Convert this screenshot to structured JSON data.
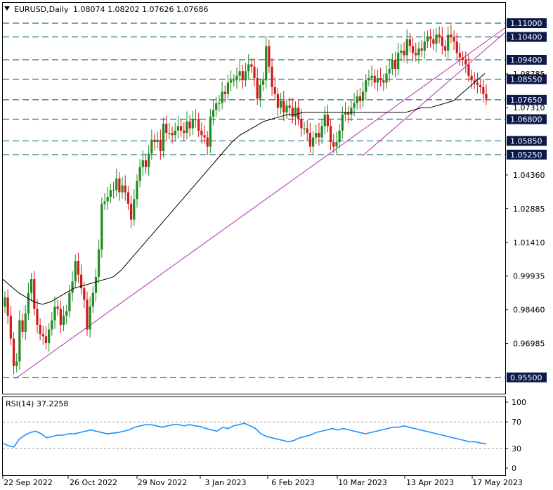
{
  "header": {
    "symbol": "EURUSD,Daily",
    "ohlc": "1.08074 1.08202 1.07626 1.07686",
    "menu_icon": "triangle-down-icon"
  },
  "rsi_panel": {
    "label": "RSI(14) 37.2258",
    "levels": [
      100,
      70,
      30,
      0
    ],
    "dashed_levels": [
      70,
      30
    ],
    "range": [
      0,
      100
    ]
  },
  "colors": {
    "bull": "#1f8a1f",
    "bear": "#d11a1a",
    "level_line": "#1f6f7f",
    "trendline": "#b030b0",
    "ma_line": "#000000",
    "rsi_line": "#1e90ff",
    "price_box": "#0b1a4a"
  },
  "chart_data": {
    "type": "candlestick",
    "price_range": [
      0.9485,
      1.114
    ],
    "y_ticks": [
      "1.04360",
      "1.02885",
      "1.01410",
      "0.99935",
      "0.98460",
      "0.96985",
      "1.08785",
      "1.07310"
    ],
    "x_ticks": [
      "22 Sep 2022",
      "26 Oct 2022",
      "29 Nov 2022",
      "3 Jan 2023",
      "6 Feb 2023",
      "10 Mar 2023",
      "13 Apr 2023",
      "17 May 2023"
    ],
    "horizontal_levels": [
      "1.11000",
      "1.10400",
      "1.09400",
      "1.08550",
      "1.07650",
      "1.06800",
      "1.05850",
      "1.05250",
      "0.95500"
    ],
    "trendlines": [
      {
        "from": [
          "22 Sep 2022",
          0.9545
        ],
        "to": [
          "end",
          1.108
        ]
      },
      {
        "from": [
          "10 Mar 2023",
          1.052
        ],
        "to": [
          "end",
          1.106
        ]
      }
    ],
    "series": [
      {
        "name": "Close",
        "values": [
          0.99,
          0.982,
          0.972,
          0.96,
          0.962,
          0.98,
          0.975,
          0.983,
          0.992,
          0.998,
          0.985,
          0.978,
          0.974,
          0.973,
          0.97,
          0.976,
          0.98,
          0.986,
          0.985,
          0.978,
          0.982,
          0.984,
          0.992,
          0.997,
          1.006,
          1.0,
          0.994,
          0.989,
          0.976,
          0.986,
          0.992,
          0.999,
          1.011,
          1.031,
          1.032,
          1.034,
          1.037,
          1.037,
          1.042,
          1.036,
          1.039,
          1.036,
          1.031,
          1.024,
          1.033,
          1.041,
          1.047,
          1.05,
          1.047,
          1.053,
          1.059,
          1.058,
          1.059,
          1.054,
          1.066,
          1.062,
          1.062,
          1.061,
          1.063,
          1.065,
          1.063,
          1.062,
          1.067,
          1.064,
          1.068,
          1.068,
          1.063,
          1.061,
          1.06,
          1.056,
          1.069,
          1.072,
          1.075,
          1.075,
          1.08,
          1.079,
          1.084,
          1.085,
          1.085,
          1.087,
          1.089,
          1.085,
          1.089,
          1.092,
          1.091,
          1.086,
          1.077,
          1.083,
          1.085,
          1.1,
          1.091,
          1.082,
          1.079,
          1.073,
          1.076,
          1.071,
          1.074,
          1.073,
          1.069,
          1.073,
          1.068,
          1.064,
          1.064,
          1.062,
          1.056,
          1.06,
          1.062,
          1.06,
          1.065,
          1.07,
          1.065,
          1.058,
          1.056,
          1.058,
          1.063,
          1.07,
          1.071,
          1.07,
          1.073,
          1.075,
          1.078,
          1.076,
          1.08,
          1.085,
          1.086,
          1.087,
          1.084,
          1.086,
          1.085,
          1.084,
          1.088,
          1.09,
          1.094,
          1.09,
          1.097,
          1.098,
          1.096,
          1.103,
          1.1,
          1.097,
          1.096,
          1.099,
          1.098,
          1.102,
          1.104,
          1.103,
          1.101,
          1.105,
          1.104,
          1.1,
          1.098,
          1.105,
          1.104,
          1.102,
          1.097,
          1.095,
          1.094,
          1.092,
          1.087,
          1.085,
          1.084,
          1.083,
          1.082,
          1.079,
          1.077
        ],
        "note": "shown as OHLC candles"
      },
      {
        "name": "MA",
        "values": [
          0.998,
          0.995,
          0.992,
          0.99,
          0.988,
          0.987,
          0.988,
          0.99,
          0.992,
          0.994,
          0.995,
          0.996,
          0.997,
          0.998,
          0.999,
          1.002,
          1.006,
          1.01,
          1.014,
          1.018,
          1.022,
          1.026,
          1.03,
          1.034,
          1.038,
          1.042,
          1.046,
          1.05,
          1.054,
          1.058,
          1.061,
          1.063,
          1.065,
          1.067,
          1.068,
          1.069,
          1.07,
          1.07,
          1.071,
          1.071,
          1.071,
          1.071,
          1.071,
          1.071,
          1.071,
          1.071,
          1.071,
          1.071,
          1.071,
          1.071,
          1.071,
          1.071,
          1.072,
          1.073,
          1.073,
          1.074,
          1.075,
          1.076,
          1.079,
          1.082,
          1.085,
          1.088
        ],
        "note": "moving average line"
      },
      {
        "name": "RSI",
        "values": [
          38,
          34,
          32,
          44,
          50,
          54,
          56,
          52,
          46,
          48,
          50,
          50,
          52,
          52,
          54,
          56,
          58,
          56,
          54,
          52,
          53,
          54,
          56,
          58,
          62,
          64,
          66,
          66,
          64,
          62,
          64,
          66,
          66,
          64,
          66,
          64,
          63,
          60,
          58,
          56,
          62,
          60,
          64,
          66,
          68,
          64,
          60,
          52,
          48,
          46,
          44,
          42,
          40,
          42,
          46,
          48,
          50,
          54,
          56,
          58,
          60,
          58,
          60,
          58,
          56,
          54,
          52,
          54,
          56,
          58,
          60,
          62,
          62,
          64,
          62,
          60,
          58,
          56,
          54,
          52,
          50,
          48,
          46,
          44,
          42,
          40,
          40,
          38,
          37
        ],
        "note": "RSI(14)"
      }
    ]
  }
}
